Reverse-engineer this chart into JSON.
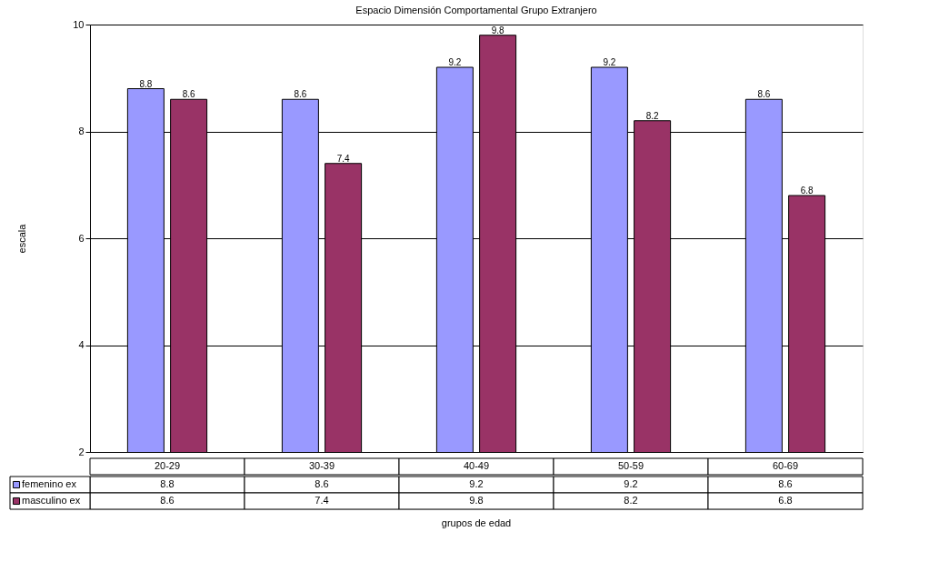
{
  "chart_data": {
    "type": "bar",
    "title": "Espacio Dimensión Comportamental Grupo Extranjero",
    "xlabel": "grupos de edad",
    "ylabel": "escala",
    "categories": [
      "20-29",
      "30-39",
      "40-49",
      "50-59",
      "60-69"
    ],
    "series": [
      {
        "name": "femenino ex",
        "color": "#9999ff",
        "values": [
          8.8,
          8.6,
          9.2,
          9.2,
          8.6
        ]
      },
      {
        "name": "masculino ex",
        "color": "#993366",
        "values": [
          8.6,
          7.4,
          9.8,
          8.2,
          6.8
        ]
      }
    ],
    "annotations": [
      "8.8",
      "8.6",
      "9.2",
      "9.2",
      "8.6",
      "8.6",
      "7.4",
      "9.8",
      "8.2",
      "6.8"
    ],
    "ylim": [
      2,
      10
    ],
    "yticks": [
      2,
      4,
      6,
      8,
      10
    ],
    "grid": "y",
    "data_labels": true,
    "legend": "bottom"
  }
}
